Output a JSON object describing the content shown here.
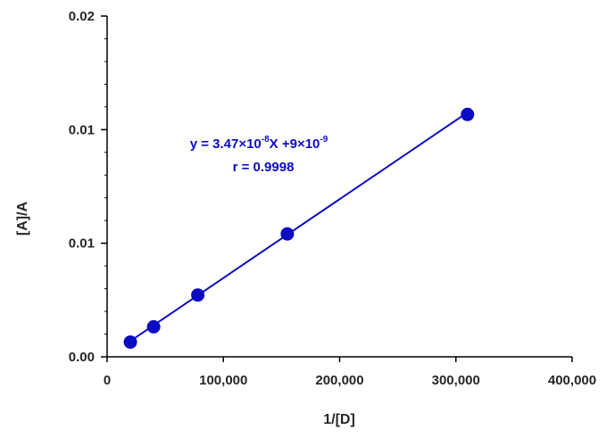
{
  "chart_data": {
    "type": "scatter",
    "title": "",
    "xlabel": "1/[D]",
    "ylabel": "[A]/A",
    "xlim": [
      0,
      400000
    ],
    "ylim": [
      0,
      0.015
    ],
    "x_ticks": [
      0,
      100000,
      200000,
      300000,
      400000
    ],
    "x_tick_labels": [
      "0",
      "100,000",
      "200,000",
      "300,000",
      "400,000"
    ],
    "y_ticks": [
      0,
      0.005,
      0.01,
      0.015
    ],
    "y_tick_labels": [
      "0.00",
      "0.01",
      "0.01",
      "0.02"
    ],
    "grid": false,
    "legend": "none",
    "colors": {
      "series": "#0b0bc4",
      "axis": "#000000",
      "text": "#262626"
    },
    "series": [
      {
        "x": [
          20000,
          40000,
          78000,
          155000,
          310000
        ],
        "y": [
          0.00065,
          0.00132,
          0.00272,
          0.00541,
          0.01067
        ],
        "marker": "circle",
        "fit_line": {
          "slope": 3.47e-08,
          "intercept": 9e-09,
          "x_range": [
            20000,
            310000
          ]
        }
      }
    ],
    "annotations": {
      "equation": {
        "prefix": "y = 3.47×10",
        "exp1": "-8",
        "middle": "X +9×10",
        "exp2": "-9"
      },
      "r_value": "r = 0.9998"
    }
  }
}
